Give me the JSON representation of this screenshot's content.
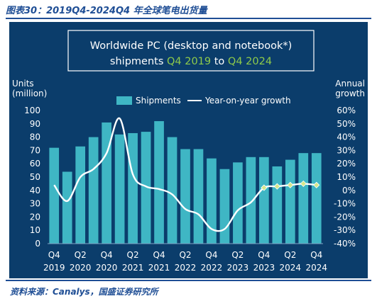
{
  "figure": {
    "caption": "图表30：2019Q4-2024Q4 年全球笔电出货量",
    "source": "资料来源：Canalys，国盛证券研究所"
  },
  "colors": {
    "background": "#0b3d6b",
    "bar": "#3fb6c4",
    "line": "#ffffff",
    "marker": "#d6e88a",
    "title_highlight": "#8fcb4a",
    "caption": "#1f4e95"
  },
  "chart_data": {
    "type": "bar",
    "title_line1": "Worldwide PC (desktop and notebook*)",
    "title_line2_prefix": "shipments ",
    "title_line2_start": "Q4 2019",
    "title_line2_mid": " to ",
    "title_line2_end": "Q4 2024",
    "ylabel_left_line1": "Units",
    "ylabel_left_line2": "(million)",
    "ylabel_right_line1": "Annual",
    "ylabel_right_line2": "growth",
    "legend": {
      "bar": "Shipments",
      "line": "Year-on-year growth",
      "position": "top-center"
    },
    "grid": false,
    "categories": [
      "Q4 2019",
      "Q1 2020",
      "Q2 2020",
      "Q3 2020",
      "Q4 2020",
      "Q1 2021",
      "Q2 2021",
      "Q3 2021",
      "Q4 2021",
      "Q1 2022",
      "Q2 2022",
      "Q3 2022",
      "Q4 2022",
      "Q1 2023",
      "Q2 2023",
      "Q3 2023",
      "Q4 2023",
      "Q1 2024",
      "Q2 2024",
      "Q3 2024",
      "Q4 2024"
    ],
    "x_tick_labels": [
      {
        "index": 0,
        "quarter": "Q4",
        "year": "2019"
      },
      {
        "index": 2,
        "quarter": "Q2",
        "year": "2020"
      },
      {
        "index": 4,
        "quarter": "Q4",
        "year": "2020"
      },
      {
        "index": 6,
        "quarter": "Q2",
        "year": "2021"
      },
      {
        "index": 8,
        "quarter": "Q4",
        "year": "2021"
      },
      {
        "index": 10,
        "quarter": "Q2",
        "year": "2022"
      },
      {
        "index": 12,
        "quarter": "Q4",
        "year": "2022"
      },
      {
        "index": 14,
        "quarter": "Q2",
        "year": "2023"
      },
      {
        "index": 16,
        "quarter": "Q4",
        "year": "2023"
      },
      {
        "index": 18,
        "quarter": "Q2",
        "year": "2024"
      },
      {
        "index": 20,
        "quarter": "Q4",
        "year": "2024"
      }
    ],
    "series": [
      {
        "name": "Shipments",
        "axis": "left",
        "values": [
          72,
          54,
          73,
          80,
          91,
          82,
          83,
          84,
          92,
          80,
          71,
          71,
          64,
          56,
          61,
          65,
          65,
          58,
          63,
          68,
          68
        ]
      },
      {
        "name": "Year-on-year growth",
        "axis": "right",
        "unit": "%",
        "values": [
          4,
          -8,
          10,
          16,
          28,
          54,
          12,
          3,
          1,
          -3,
          -14,
          -18,
          -29,
          -29,
          -15,
          -9,
          2,
          3,
          4,
          5,
          4
        ],
        "marker_indices": [
          16,
          17,
          18,
          19,
          20
        ]
      }
    ],
    "y_left": {
      "ylim": [
        0,
        100
      ],
      "ticks": [
        "0",
        "10",
        "20",
        "30",
        "40",
        "50",
        "60",
        "70",
        "80",
        "90",
        "100"
      ]
    },
    "y_right": {
      "ylim": [
        -40,
        60
      ],
      "ticks": [
        "60%",
        "50%",
        "40%",
        "30%",
        "20%",
        "10%",
        "0%",
        "-10%",
        "-20%",
        "-30%",
        "-40%"
      ]
    }
  }
}
